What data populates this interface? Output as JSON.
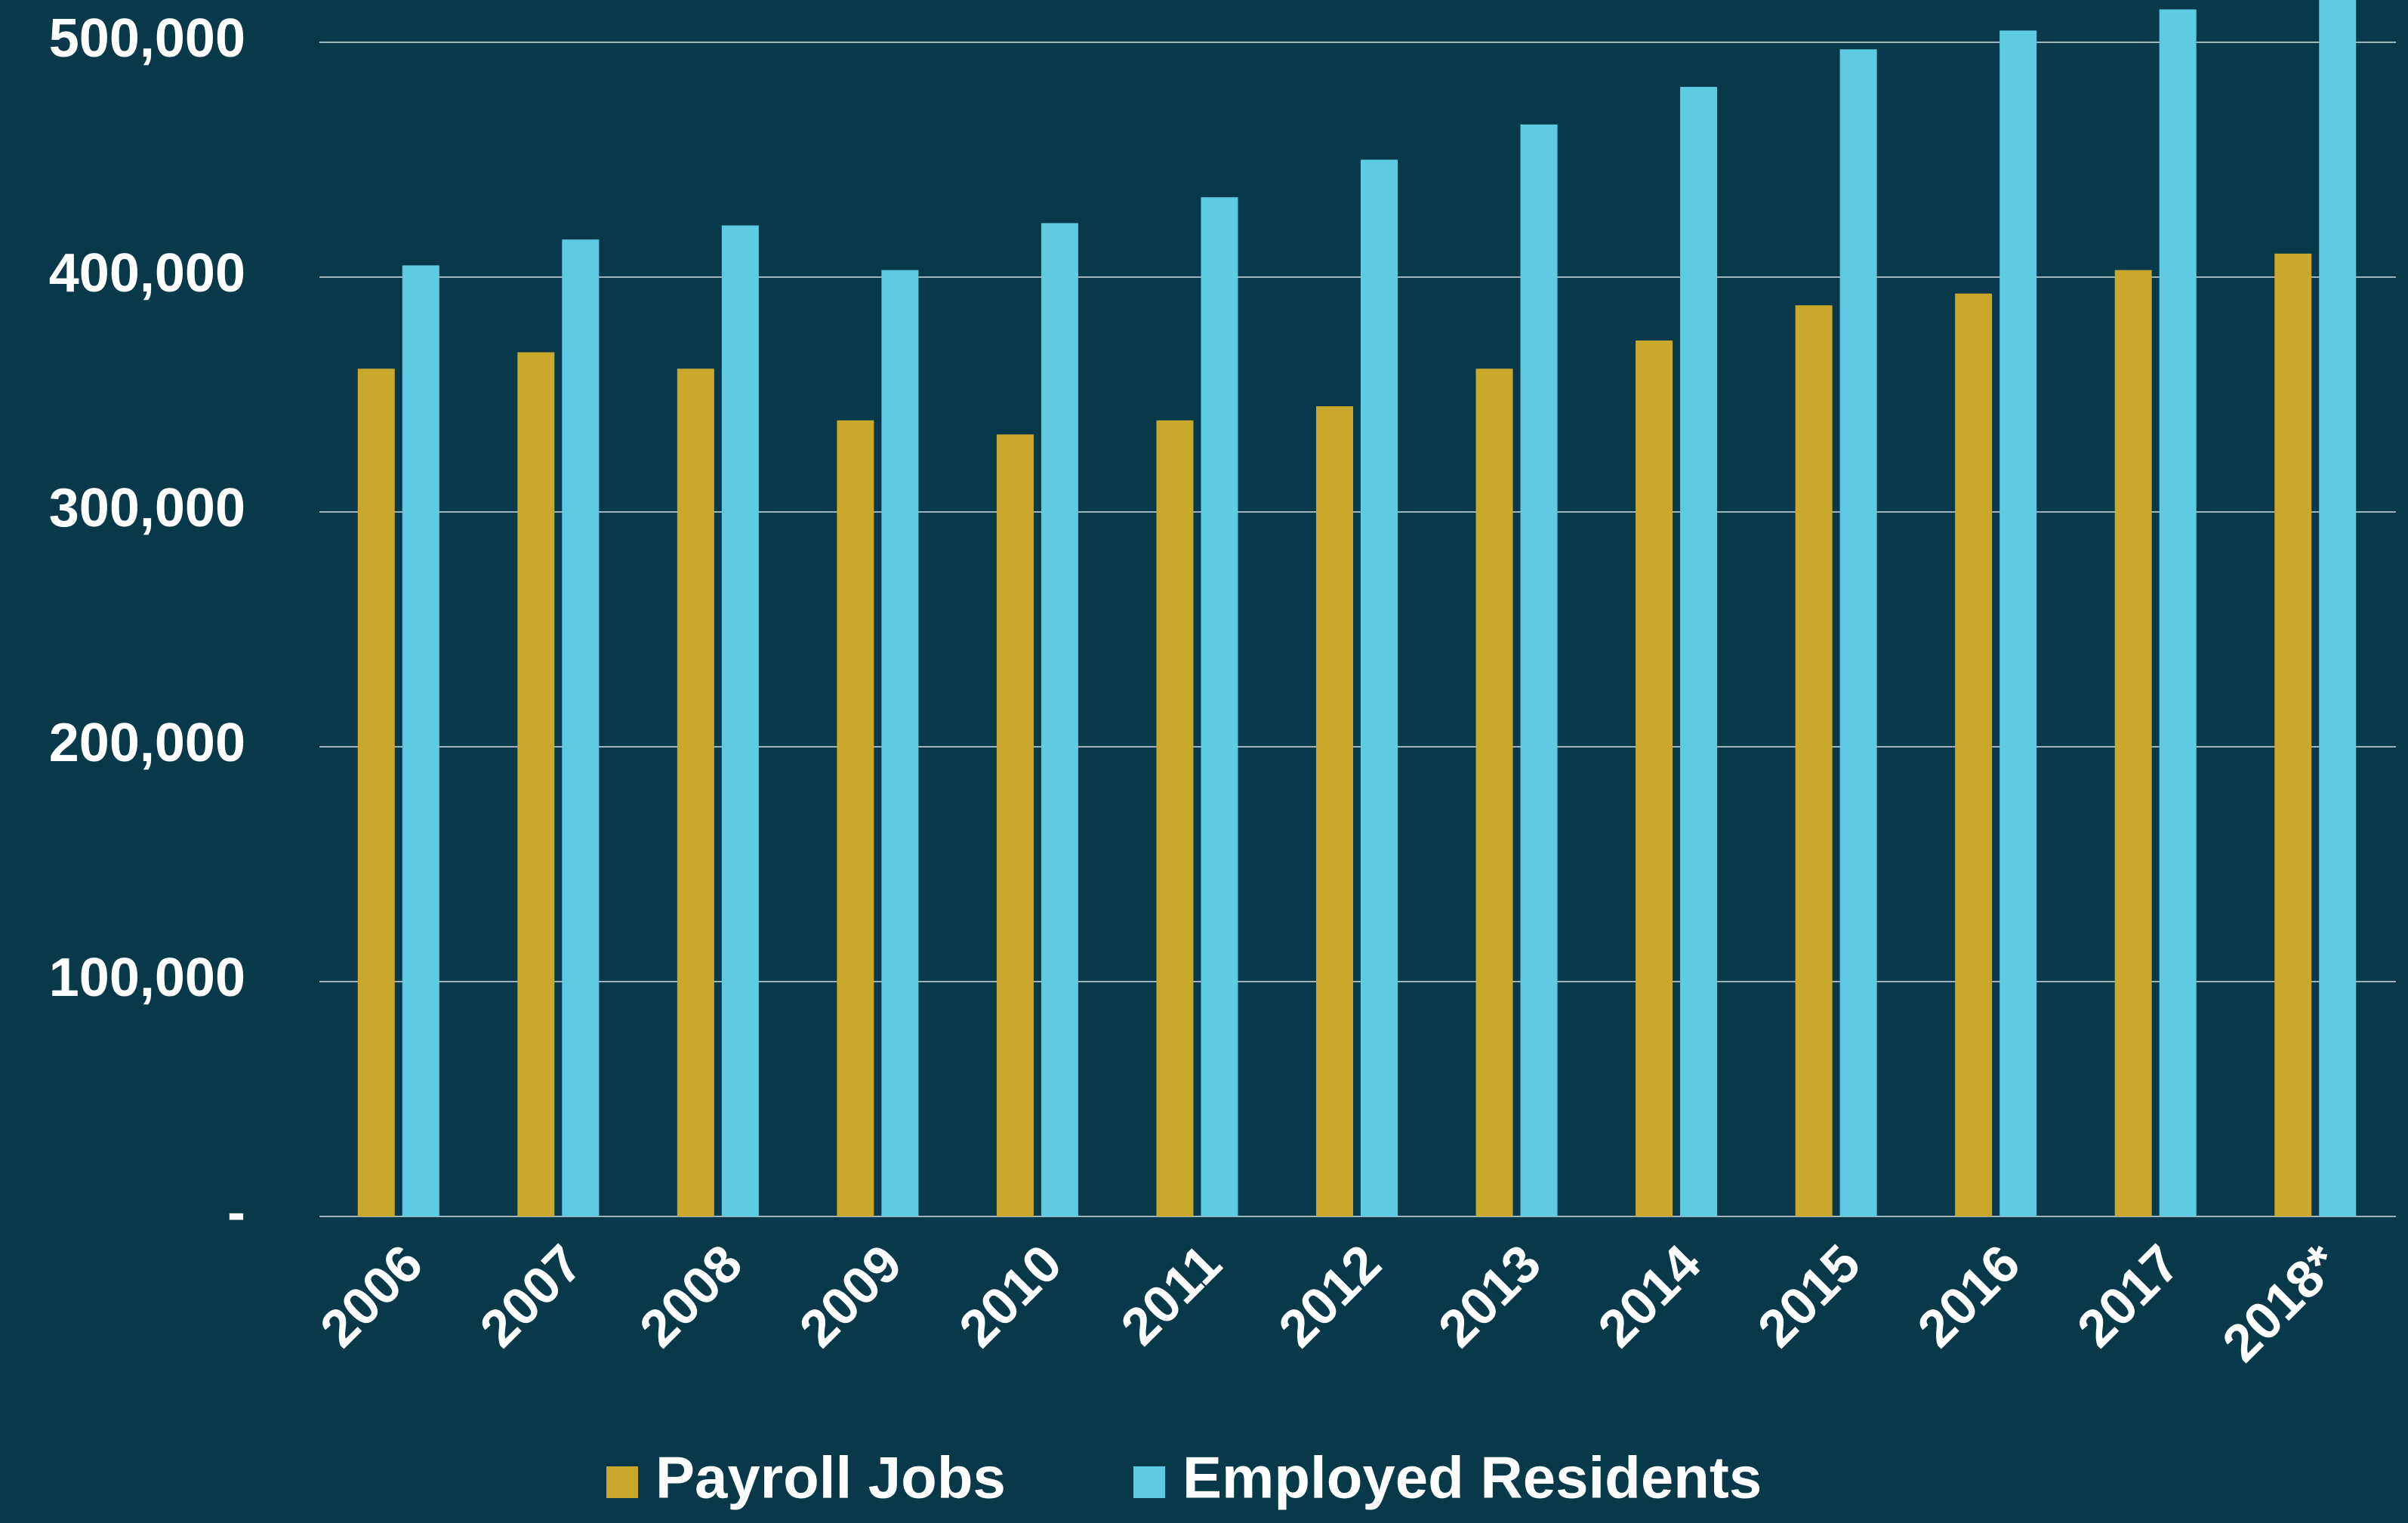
{
  "chart_data": {
    "type": "bar",
    "categories": [
      "2006",
      "2007",
      "2008",
      "2009",
      "2010",
      "2011",
      "2012",
      "2013",
      "2014",
      "2015",
      "2016",
      "2017",
      "2018*"
    ],
    "series": [
      {
        "name": "Payroll Jobs",
        "color": "#c9a82c",
        "values": [
          361000,
          368000,
          361000,
          339000,
          333000,
          339000,
          345000,
          361000,
          373000,
          388000,
          393000,
          403000,
          410000
        ]
      },
      {
        "name": "Employed Residents",
        "color": "#5ecbe3",
        "values": [
          405000,
          416000,
          422000,
          403000,
          423000,
          434000,
          450000,
          465000,
          481000,
          497000,
          505000,
          514000,
          518000
        ]
      }
    ],
    "ylim": [
      0,
      518000
    ],
    "yticks": [
      {
        "value": 0,
        "label": "-"
      },
      {
        "value": 100000,
        "label": "100,000"
      },
      {
        "value": 200000,
        "label": "200,000"
      },
      {
        "value": 300000,
        "label": "300,000"
      },
      {
        "value": 400000,
        "label": "400,000"
      },
      {
        "value": 500000,
        "label": "500,000"
      }
    ],
    "grid": true,
    "legend": "bottom"
  }
}
